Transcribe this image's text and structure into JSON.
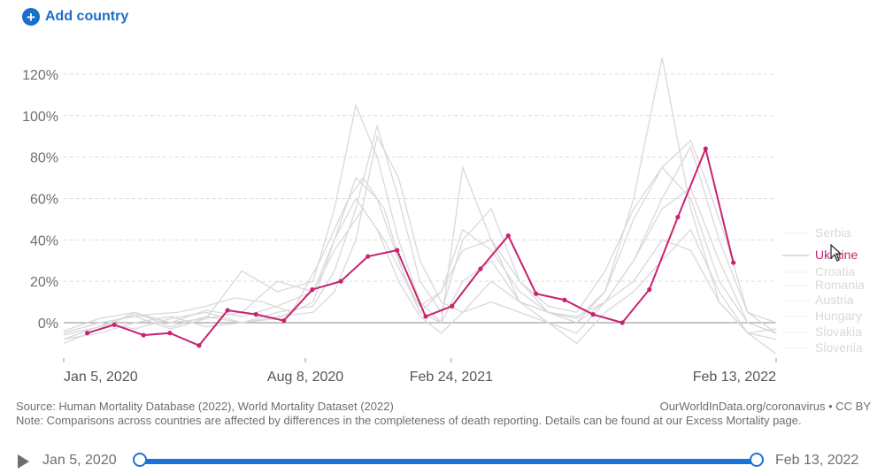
{
  "header": {
    "add_country_label": "Add country",
    "add_icon": "plus-circle-icon"
  },
  "colors": {
    "accent": "#1a73d9",
    "highlight_series": "#c8236f",
    "background_series": "#d9d9d9",
    "zero_line": "#a0a0a0",
    "grid": "#dddddd"
  },
  "chart_data": {
    "type": "line",
    "title": "",
    "xlabel": "",
    "ylabel": "",
    "ylim": [
      -15,
      125
    ],
    "y_ticks": [
      0,
      20,
      40,
      60,
      80,
      100,
      120
    ],
    "y_tick_labels": [
      "0%",
      "20%",
      "40%",
      "60%",
      "80%",
      "100%",
      "120%"
    ],
    "x_tick_labels": [
      "Jan 5, 2020",
      "Aug 8, 2020",
      "Feb 24, 2021",
      "Feb 13, 2022"
    ],
    "x_tick_positions": [
      0,
      0.3392,
      0.5439,
      1.0
    ],
    "grid": "horizontal dashed",
    "legend_placement": "right",
    "highlighted": "Ukraine",
    "series": [
      {
        "name": "Ukraine",
        "highlighted": true,
        "x": [
          0.033,
          0.071,
          0.112,
          0.149,
          0.19,
          0.23,
          0.27,
          0.309,
          0.349,
          0.389,
          0.427,
          0.468,
          0.508,
          0.545,
          0.585,
          0.624,
          0.663,
          0.703,
          0.743,
          0.784,
          0.822,
          0.862,
          0.901,
          0.94
        ],
        "values": [
          -5,
          -1,
          -6,
          -5,
          -11,
          6,
          4,
          1,
          16,
          20,
          32,
          35,
          3,
          8,
          26,
          42,
          14,
          11,
          4,
          0,
          16,
          51,
          84,
          29
        ]
      },
      {
        "name": "Serbia",
        "highlighted": false,
        "x": [
          0,
          0.04,
          0.08,
          0.12,
          0.16,
          0.2,
          0.24,
          0.28,
          0.32,
          0.36,
          0.4,
          0.42,
          0.45,
          0.48,
          0.5,
          0.53,
          0.56,
          0.6,
          0.64,
          0.68,
          0.72,
          0.76,
          0.8,
          0.84,
          0.88,
          0.9,
          0.93,
          0.96,
          1.0
        ],
        "values": [
          -8,
          -3,
          2,
          4,
          5,
          8,
          12,
          10,
          5,
          30,
          60,
          70,
          55,
          20,
          5,
          15,
          35,
          40,
          20,
          8,
          5,
          25,
          55,
          75,
          88,
          70,
          40,
          5,
          0
        ]
      },
      {
        "name": "Croatia",
        "highlighted": false,
        "x": [
          0,
          0.05,
          0.1,
          0.15,
          0.2,
          0.25,
          0.3,
          0.35,
          0.38,
          0.41,
          0.44,
          0.47,
          0.5,
          0.53,
          0.56,
          0.6,
          0.64,
          0.68,
          0.72,
          0.76,
          0.8,
          0.84,
          0.88,
          0.92,
          0.96,
          1.0
        ],
        "values": [
          -5,
          0,
          3,
          -3,
          2,
          5,
          20,
          15,
          40,
          70,
          60,
          30,
          5,
          0,
          20,
          30,
          10,
          5,
          3,
          10,
          30,
          60,
          85,
          40,
          5,
          -5
        ]
      },
      {
        "name": "Romania",
        "highlighted": false,
        "x": [
          0,
          0.05,
          0.1,
          0.15,
          0.2,
          0.25,
          0.3,
          0.35,
          0.38,
          0.42,
          0.45,
          0.48,
          0.5,
          0.53,
          0.56,
          0.6,
          0.64,
          0.68,
          0.72,
          0.76,
          0.8,
          0.84,
          0.88,
          0.92,
          0.96,
          1.0
        ],
        "values": [
          -6,
          -2,
          4,
          0,
          6,
          3,
          8,
          15,
          35,
          55,
          40,
          20,
          8,
          15,
          45,
          35,
          15,
          5,
          2,
          15,
          50,
          75,
          60,
          20,
          0,
          -5
        ]
      },
      {
        "name": "Austria",
        "highlighted": false,
        "x": [
          0,
          0.05,
          0.1,
          0.15,
          0.2,
          0.25,
          0.3,
          0.35,
          0.38,
          0.41,
          0.44,
          0.47,
          0.5,
          0.53,
          0.56,
          0.6,
          0.64,
          0.68,
          0.72,
          0.76,
          0.8,
          0.84,
          0.88,
          0.92,
          0.96,
          1.0
        ],
        "values": [
          -4,
          2,
          5,
          -2,
          3,
          0,
          2,
          10,
          40,
          60,
          45,
          20,
          3,
          -5,
          5,
          10,
          5,
          0,
          -5,
          10,
          20,
          40,
          35,
          10,
          -5,
          -3
        ]
      },
      {
        "name": "Hungary",
        "highlighted": false,
        "x": [
          0,
          0.05,
          0.1,
          0.15,
          0.2,
          0.25,
          0.3,
          0.35,
          0.38,
          0.41,
          0.44,
          0.47,
          0.5,
          0.53,
          0.56,
          0.6,
          0.64,
          0.68,
          0.72,
          0.76,
          0.8,
          0.84,
          0.88,
          0.92,
          0.96,
          1.0
        ],
        "values": [
          -8,
          -5,
          0,
          3,
          -2,
          0,
          5,
          8,
          25,
          55,
          95,
          60,
          20,
          5,
          40,
          55,
          20,
          5,
          0,
          10,
          30,
          55,
          65,
          30,
          0,
          -5
        ]
      },
      {
        "name": "Slovakia",
        "highlighted": false,
        "x": [
          0,
          0.05,
          0.1,
          0.15,
          0.2,
          0.25,
          0.3,
          0.35,
          0.38,
          0.41,
          0.44,
          0.47,
          0.5,
          0.53,
          0.56,
          0.6,
          0.64,
          0.68,
          0.72,
          0.76,
          0.8,
          0.84,
          0.88,
          0.92,
          0.96,
          1.0
        ],
        "values": [
          -5,
          0,
          -3,
          2,
          5,
          0,
          3,
          5,
          15,
          40,
          90,
          70,
          30,
          10,
          5,
          20,
          10,
          5,
          0,
          15,
          60,
          128,
          55,
          10,
          -5,
          -8
        ]
      },
      {
        "name": "Slovenia",
        "highlighted": false,
        "x": [
          0,
          0.05,
          0.1,
          0.15,
          0.2,
          0.25,
          0.3,
          0.35,
          0.38,
          0.41,
          0.44,
          0.47,
          0.5,
          0.53,
          0.56,
          0.6,
          0.64,
          0.68,
          0.72,
          0.76,
          0.8,
          0.84,
          0.88,
          0.92,
          0.96,
          1.0
        ],
        "values": [
          -10,
          -3,
          5,
          0,
          2,
          25,
          15,
          20,
          55,
          105,
          80,
          40,
          10,
          0,
          75,
          40,
          10,
          0,
          -10,
          5,
          15,
          30,
          45,
          15,
          -5,
          -15
        ]
      }
    ],
    "legend": [
      "Serbia",
      "Ukraine",
      "Croatia",
      "Romania",
      "Austria",
      "Hungary",
      "Slovakia",
      "Slovenia"
    ]
  },
  "footer": {
    "source": "Source: Human Mortality Database (2022), World Mortality Dataset (2022)",
    "note": "Note: Comparisons across countries are affected by differences in the completeness of death reporting. Details can be found at our Excess Mortality page.",
    "credit": "OurWorldInData.org/coronavirus • CC BY"
  },
  "timeline": {
    "play_icon": "play-icon",
    "start_label": "Jan 5, 2020",
    "end_label": "Feb 13, 2022",
    "start_fraction": 0,
    "end_fraction": 1
  }
}
